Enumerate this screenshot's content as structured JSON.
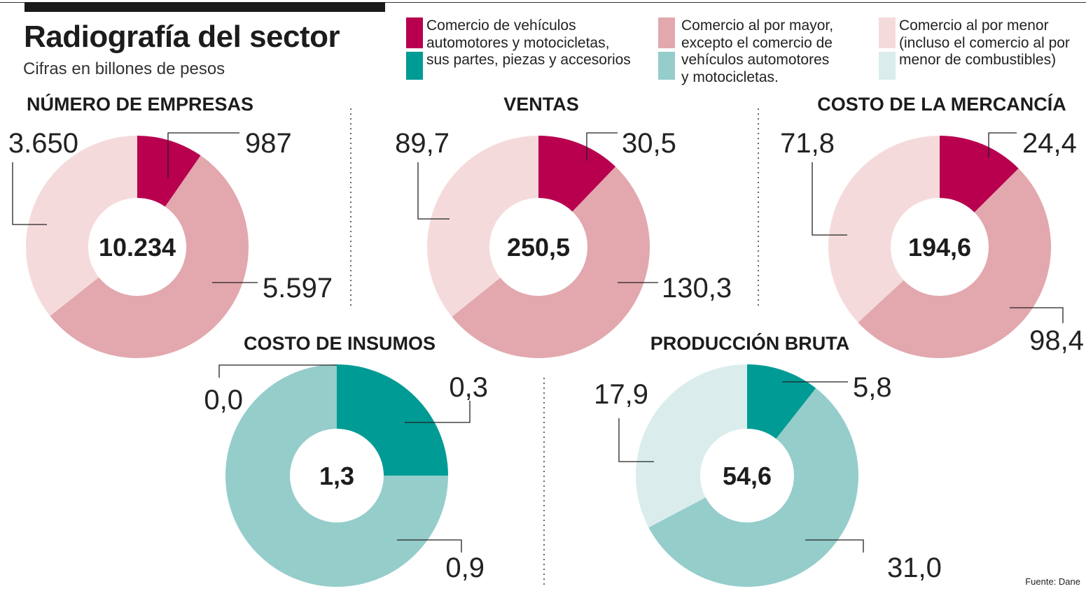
{
  "header": {
    "title": "Radiografía del sector",
    "subtitle": "Cifras en billones de pesos"
  },
  "legend": [
    {
      "label": "Comercio de vehículos\nautomotores y motocicletas,\nsus partes, piezas y accesorios",
      "colors": [
        "#b8004f",
        "#009b94"
      ]
    },
    {
      "label": "Comercio al por mayor,\nexcepto el comercio de\nvehículos automotores\ny motocicletas.",
      "colors": [
        "#e2a8ae",
        "#95cdcb"
      ]
    },
    {
      "label": "Comercio al por menor\n(incluso el comercio al por\nmenor de combustibles)",
      "colors": [
        "#f5dadc",
        "#daedec"
      ]
    }
  ],
  "source": "Fuente: Dane",
  "chart_data": [
    {
      "type": "pie",
      "title": "NÚMERO DE EMPRESAS",
      "total": "10.234",
      "palette": "red",
      "categories": [
        "Comercio de vehículos",
        "Comercio al por mayor",
        "Comercio al por menor"
      ],
      "values": [
        987,
        5597,
        3650
      ],
      "labels": [
        "987",
        "5.597",
        "3.650"
      ]
    },
    {
      "type": "pie",
      "title": "VENTAS",
      "total": "250,5",
      "palette": "red",
      "categories": [
        "Comercio de vehículos",
        "Comercio al por mayor",
        "Comercio al por menor"
      ],
      "values": [
        30.5,
        130.3,
        89.7
      ],
      "labels": [
        "30,5",
        "130,3",
        "89,7"
      ]
    },
    {
      "type": "pie",
      "title": "COSTO DE LA MERCANCÍA",
      "total": "194,6",
      "palette": "red",
      "categories": [
        "Comercio de vehículos",
        "Comercio al por mayor",
        "Comercio al por menor"
      ],
      "values": [
        24.4,
        98.4,
        71.8
      ],
      "labels": [
        "24,4",
        "98,4",
        "71,8"
      ]
    },
    {
      "type": "pie",
      "title": "COSTO DE INSUMOS",
      "total": "1,3",
      "palette": "teal",
      "categories": [
        "Comercio de vehículos",
        "Comercio al por mayor",
        "Comercio al por menor"
      ],
      "values": [
        0.3,
        0.9,
        0.0
      ],
      "labels": [
        "0,3",
        "0,9",
        "0,0"
      ]
    },
    {
      "type": "pie",
      "title": "PRODUCCIÓN BRUTA",
      "total": "54,6",
      "palette": "teal",
      "categories": [
        "Comercio de vehículos",
        "Comercio al por mayor",
        "Comercio al por menor"
      ],
      "values": [
        5.8,
        31.0,
        17.9
      ],
      "labels": [
        "5,8",
        "31,0",
        "17,9"
      ]
    }
  ],
  "palettes": {
    "red": [
      "#b8004f",
      "#e2a8ae",
      "#f5dadc"
    ],
    "teal": [
      "#009b94",
      "#95cdcb",
      "#daedec"
    ]
  }
}
